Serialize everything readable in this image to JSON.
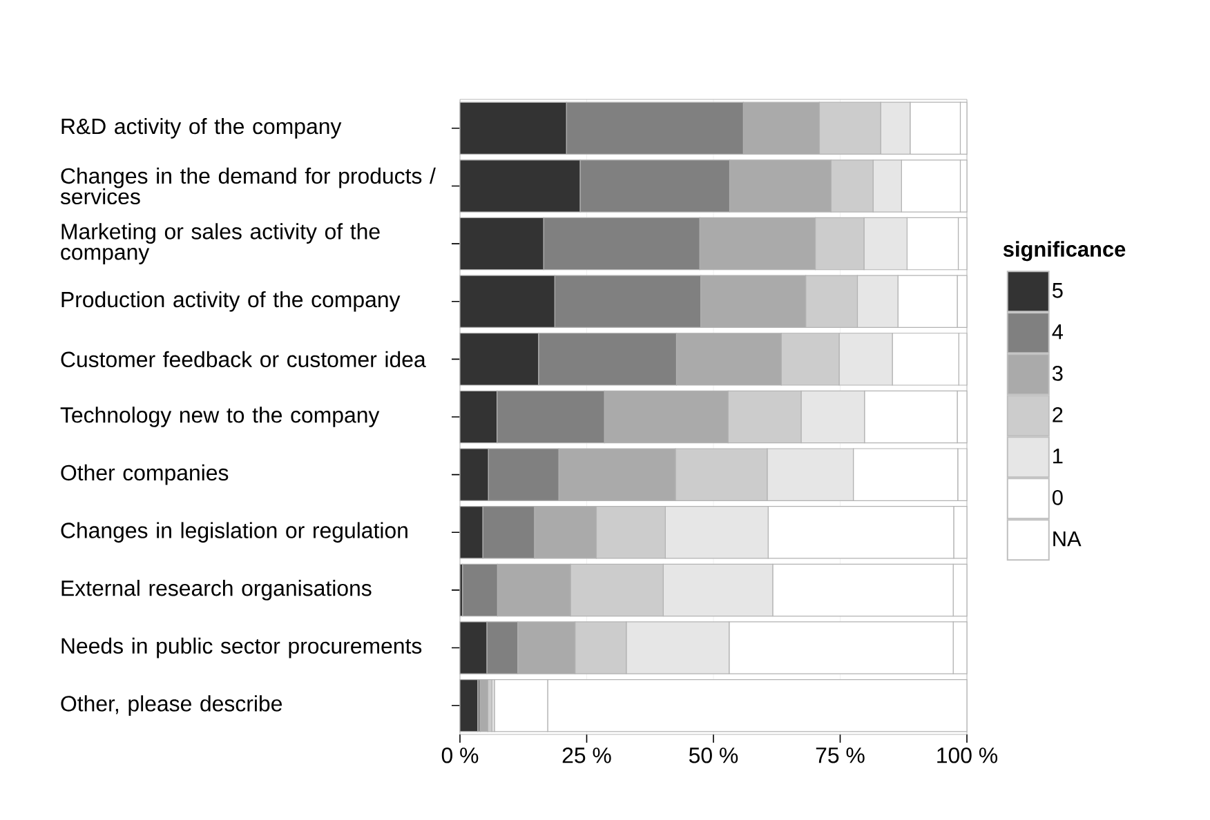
{
  "chart_data": {
    "type": "bar",
    "orientation": "horizontal",
    "stacked": true,
    "categories": [
      "R&D activity of the company",
      "Changes in the demand for products / services",
      "Marketing or sales activity of the company",
      "Production activity of the company",
      "Customer feedback or customer idea",
      "Technology new to the company",
      "Other companies",
      "Changes in legislation or regulation",
      "External research organisations",
      "Needs in public sector procurements",
      "Other, please describe"
    ],
    "series": [
      {
        "name": "5",
        "color": "#333333",
        "values": [
          21.0,
          23.7,
          16.5,
          18.7,
          15.5,
          7.3,
          5.6,
          4.5,
          0.5,
          5.3,
          3.5
        ]
      },
      {
        "name": "4",
        "color": "#808080",
        "values": [
          34.9,
          29.5,
          30.8,
          28.8,
          27.2,
          21.2,
          13.9,
          10.2,
          6.9,
          6.1,
          0.5
        ]
      },
      {
        "name": "3",
        "color": "#aaaaaa",
        "values": [
          15.0,
          20.0,
          22.8,
          20.7,
          20.7,
          24.4,
          23.0,
          12.2,
          14.4,
          11.3,
          1.5
        ]
      },
      {
        "name": "2",
        "color": "#cccccc",
        "values": [
          12.1,
          8.3,
          9.6,
          10.2,
          11.4,
          14.4,
          18.1,
          13.6,
          18.3,
          10.1,
          0.8
        ]
      },
      {
        "name": "1",
        "color": "#e6e6e6",
        "values": [
          5.8,
          5.6,
          8.5,
          8.0,
          10.5,
          12.5,
          17.0,
          20.3,
          21.6,
          20.3,
          0.5
        ]
      },
      {
        "name": "0",
        "color": "#ffffff",
        "values": [
          9.9,
          11.6,
          10.1,
          11.7,
          13.1,
          18.3,
          20.6,
          36.6,
          35.6,
          44.2,
          10.5
        ]
      },
      {
        "name": "NA",
        "color": "#ffffff",
        "values": [
          1.3,
          1.3,
          1.7,
          1.9,
          1.6,
          1.9,
          1.8,
          2.6,
          2.7,
          2.7,
          82.7
        ]
      }
    ],
    "xlim": [
      0,
      100
    ],
    "xticks": [
      {
        "value": 0,
        "label": "0 %"
      },
      {
        "value": 25,
        "label": "25 %"
      },
      {
        "value": 50,
        "label": "50 %"
      },
      {
        "value": 75,
        "label": "75 %"
      },
      {
        "value": 100,
        "label": "100 %"
      }
    ],
    "legend_title": "significance",
    "legend": "right",
    "grid": "x"
  }
}
